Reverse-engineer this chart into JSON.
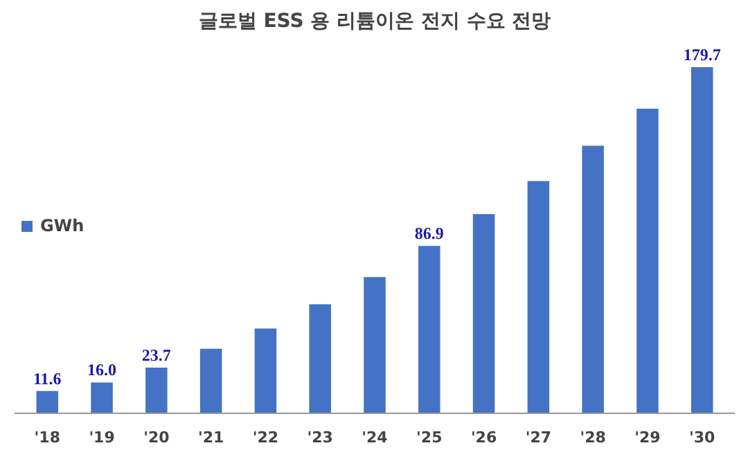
{
  "chart_data": {
    "type": "bar",
    "title": "글로벌 ESS 용 리튬이온 전지 수요 전망",
    "categories": [
      "'18",
      "'19",
      "'20",
      "'21",
      "'22",
      "'23",
      "'24",
      "'25",
      "'26",
      "'27",
      "'28",
      "'29",
      "'30"
    ],
    "series": [
      {
        "name": "GWh",
        "color": "#4472c4",
        "values": [
          11.6,
          16.0,
          23.7,
          33.5,
          44.0,
          56.6,
          70.7,
          86.9,
          103.4,
          120.6,
          138.9,
          158.1,
          179.7
        ],
        "value_labels": [
          "11.6",
          "16.0",
          "23.7",
          null,
          null,
          null,
          null,
          "86.9",
          null,
          null,
          null,
          null,
          "179.7"
        ]
      }
    ],
    "legend": "left",
    "grid": false
  }
}
